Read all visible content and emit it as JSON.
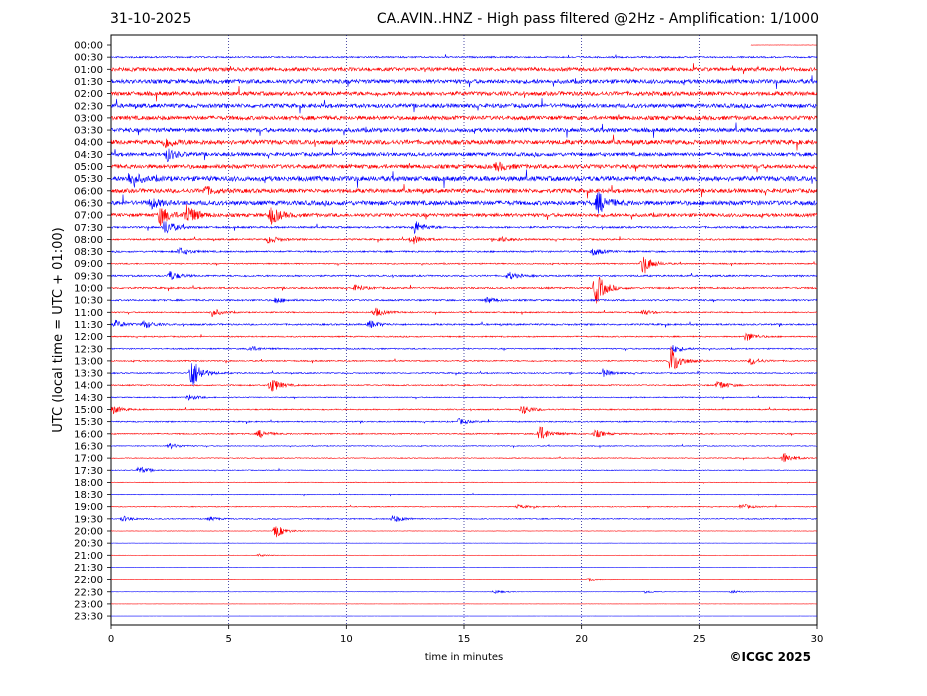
{
  "header": {
    "date": "31-10-2025",
    "title": "CA.AVIN..HNZ - High pass filtered @2Hz - Amplification: 1/1000"
  },
  "footer": {
    "copyright": "©ICGC 2025"
  },
  "chart_data": {
    "type": "line",
    "xlabel": "time in minutes",
    "ylabel": "UTC (local time = UTC + 01:00)",
    "xlim": [
      0,
      30
    ],
    "x_ticks": [
      0,
      5,
      10,
      15,
      20,
      25,
      30
    ],
    "grid": "vertical dotted lines at 5-minute ticks",
    "colors": {
      "odd_traces": "#ff0000",
      "even_traces": "#0000ff"
    },
    "rows": [
      {
        "label": "00:00",
        "noise": 0.15,
        "events": [],
        "partial_from": 27.2
      },
      {
        "label": "00:30",
        "noise": 0.75,
        "events": []
      },
      {
        "label": "01:00",
        "noise": 1.8,
        "events": []
      },
      {
        "label": "01:30",
        "noise": 2.0,
        "events": []
      },
      {
        "label": "02:00",
        "noise": 2.0,
        "events": []
      },
      {
        "label": "02:30",
        "noise": 2.0,
        "events": []
      },
      {
        "label": "03:00",
        "noise": 2.0,
        "events": []
      },
      {
        "label": "03:30",
        "noise": 2.0,
        "events": []
      },
      {
        "label": "04:00",
        "noise": 2.2,
        "events": [
          [
            2.3,
            5
          ]
        ]
      },
      {
        "label": "04:30",
        "noise": 1.8,
        "events": [
          [
            2.4,
            6
          ]
        ]
      },
      {
        "label": "05:00",
        "noise": 2.0,
        "events": [
          [
            16.4,
            4
          ]
        ]
      },
      {
        "label": "05:30",
        "noise": 2.4,
        "events": [
          [
            0.8,
            7
          ]
        ]
      },
      {
        "label": "06:00",
        "noise": 2.0,
        "events": [
          [
            4.0,
            4
          ]
        ]
      },
      {
        "label": "06:30",
        "noise": 2.2,
        "events": [
          [
            1.7,
            5
          ],
          [
            20.7,
            11
          ]
        ]
      },
      {
        "label": "07:00",
        "noise": 1.7,
        "events": [
          [
            2.1,
            10
          ],
          [
            3.2,
            11
          ],
          [
            6.8,
            9
          ]
        ]
      },
      {
        "label": "07:30",
        "noise": 0.9,
        "events": [
          [
            2.3,
            8
          ],
          [
            12.9,
            7
          ]
        ]
      },
      {
        "label": "08:00",
        "noise": 0.8,
        "events": [
          [
            6.7,
            4
          ],
          [
            12.8,
            5
          ],
          [
            16.5,
            3
          ]
        ]
      },
      {
        "label": "08:30",
        "noise": 0.8,
        "events": [
          [
            2.9,
            4
          ],
          [
            20.5,
            4
          ]
        ]
      },
      {
        "label": "09:00",
        "noise": 0.6,
        "events": [
          [
            22.6,
            10
          ]
        ]
      },
      {
        "label": "09:30",
        "noise": 0.8,
        "events": [
          [
            2.5,
            5
          ],
          [
            16.9,
            4
          ]
        ]
      },
      {
        "label": "10:00",
        "noise": 0.8,
        "events": [
          [
            20.6,
            17
          ],
          [
            10.4,
            3
          ]
        ]
      },
      {
        "label": "10:30",
        "noise": 0.8,
        "events": [
          [
            7.0,
            3
          ],
          [
            16.0,
            3
          ]
        ]
      },
      {
        "label": "11:00",
        "noise": 0.6,
        "events": [
          [
            4.3,
            4
          ],
          [
            11.2,
            5
          ],
          [
            22.6,
            3
          ]
        ]
      },
      {
        "label": "11:30",
        "noise": 0.8,
        "events": [
          [
            0.2,
            4
          ],
          [
            1.4,
            4
          ],
          [
            11.0,
            4
          ]
        ]
      },
      {
        "label": "12:00",
        "noise": 0.6,
        "events": [
          [
            27.0,
            5
          ]
        ]
      },
      {
        "label": "12:30",
        "noise": 0.6,
        "events": [
          [
            5.9,
            3
          ],
          [
            23.9,
            4
          ]
        ]
      },
      {
        "label": "13:00",
        "noise": 0.6,
        "events": [
          [
            23.8,
            15
          ],
          [
            27.2,
            4
          ]
        ]
      },
      {
        "label": "13:30",
        "noise": 0.6,
        "events": [
          [
            3.4,
            18
          ],
          [
            20.9,
            4
          ]
        ]
      },
      {
        "label": "14:00",
        "noise": 0.6,
        "events": [
          [
            6.8,
            8
          ],
          [
            25.8,
            5
          ]
        ]
      },
      {
        "label": "14:30",
        "noise": 0.5,
        "events": [
          [
            3.3,
            3
          ]
        ]
      },
      {
        "label": "15:00",
        "noise": 0.6,
        "events": [
          [
            17.5,
            5
          ],
          [
            0.1,
            4
          ]
        ]
      },
      {
        "label": "15:30",
        "noise": 0.6,
        "events": [
          [
            14.8,
            3
          ]
        ]
      },
      {
        "label": "16:00",
        "noise": 0.6,
        "events": [
          [
            18.2,
            9
          ],
          [
            6.3,
            4
          ],
          [
            20.6,
            4
          ]
        ]
      },
      {
        "label": "16:30",
        "noise": 0.4,
        "events": [
          [
            2.5,
            3
          ]
        ]
      },
      {
        "label": "17:00",
        "noise": 0.4,
        "events": [
          [
            28.6,
            6
          ]
        ]
      },
      {
        "label": "17:30",
        "noise": 0.4,
        "events": [
          [
            1.2,
            4
          ]
        ]
      },
      {
        "label": "18:00",
        "noise": 0.3,
        "events": []
      },
      {
        "label": "18:30",
        "noise": 0.3,
        "events": []
      },
      {
        "label": "19:00",
        "noise": 0.4,
        "events": [
          [
            26.8,
            3
          ],
          [
            17.3,
            2
          ]
        ]
      },
      {
        "label": "19:30",
        "noise": 0.5,
        "events": [
          [
            12.0,
            4
          ],
          [
            0.5,
            3
          ],
          [
            4.2,
            2
          ]
        ]
      },
      {
        "label": "20:00",
        "noise": 0.2,
        "events": [
          [
            7.0,
            7
          ]
        ]
      },
      {
        "label": "20:30",
        "noise": 0.08,
        "events": []
      },
      {
        "label": "21:00",
        "noise": 0.08,
        "events": [
          [
            6.3,
            1.5
          ]
        ]
      },
      {
        "label": "21:30",
        "noise": 0.08,
        "events": []
      },
      {
        "label": "22:00",
        "noise": 0.08,
        "events": [
          [
            20.3,
            1.2
          ]
        ]
      },
      {
        "label": "22:30",
        "noise": 0.12,
        "events": [
          [
            16.3,
            2
          ],
          [
            22.7,
            1.5
          ],
          [
            26.4,
            1.5
          ]
        ]
      },
      {
        "label": "23:00",
        "noise": 0.06,
        "events": []
      },
      {
        "label": "23:30",
        "noise": 0.06,
        "events": []
      }
    ]
  }
}
